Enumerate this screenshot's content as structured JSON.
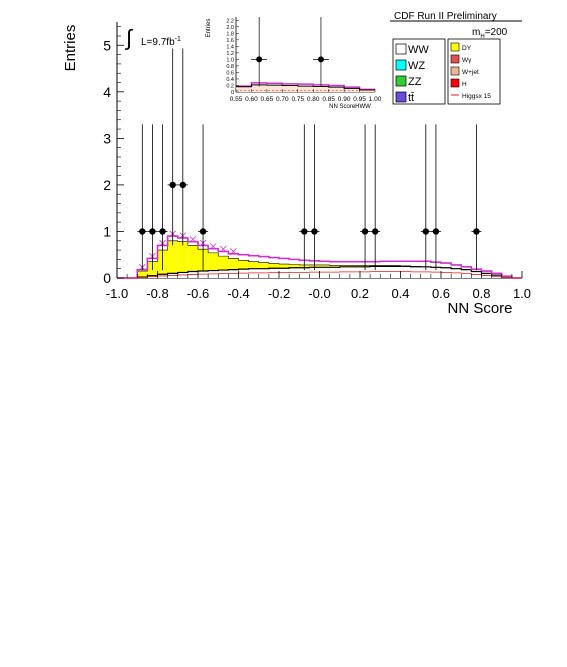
{
  "header": {
    "experiment": "CDF Run II Preliminary",
    "mass_label": "m",
    "mass_sub": "H",
    "mass_value": "=200",
    "lumi_prefix": "L=9.7fb",
    "lumi_sup": "-1"
  },
  "colors": {
    "WW": "#ffffff",
    "WZ": "#00ffff",
    "ZZ": "#33cc33",
    "ttbar": "#6a4cd8",
    "DY": "#ffff00",
    "Wgamma": "#e05050",
    "Wjet": "#e8b890",
    "H": "#ff0000",
    "Higgs_line": "#e02020",
    "total": "#cc33cc",
    "data": "#000000"
  },
  "chart_data": [
    {
      "id": "main",
      "type": "histogram",
      "xlabel": "NN Score",
      "ylabel": "Entries",
      "xlim": [
        -1.0,
        1.0
      ],
      "ylim": [
        0,
        5.5
      ],
      "xticks": [
        "-1.0",
        "-0.8",
        "-0.6",
        "-0.4",
        "-0.2",
        "-0.0",
        "0.2",
        "0.4",
        "0.6",
        "0.8",
        "1.0"
      ],
      "yticks": [
        "0",
        "1",
        "2",
        "3",
        "4",
        "5"
      ],
      "bin_edges": [
        -1.0,
        -0.95,
        -0.9,
        -0.85,
        -0.8,
        -0.75,
        -0.7,
        -0.65,
        -0.6,
        -0.55,
        -0.5,
        -0.45,
        -0.4,
        -0.35,
        -0.3,
        -0.25,
        -0.2,
        -0.15,
        -0.1,
        -0.05,
        0.0,
        0.05,
        0.1,
        0.15,
        0.2,
        0.25,
        0.3,
        0.35,
        0.4,
        0.45,
        0.5,
        0.55,
        0.6,
        0.65,
        0.7,
        0.75,
        0.8,
        0.85,
        0.9,
        0.95,
        1.0
      ],
      "ww_baseline": [
        0,
        0,
        0.02,
        0.05,
        0.08,
        0.1,
        0.12,
        0.14,
        0.15,
        0.16,
        0.17,
        0.18,
        0.19,
        0.2,
        0.2,
        0.21,
        0.21,
        0.22,
        0.22,
        0.23,
        0.23,
        0.23,
        0.24,
        0.24,
        0.24,
        0.25,
        0.25,
        0.25,
        0.25,
        0.24,
        0.24,
        0.23,
        0.22,
        0.2,
        0.18,
        0.14,
        0.1,
        0.06,
        0.02,
        0
      ],
      "dy_top": [
        0,
        0,
        0.15,
        0.35,
        0.6,
        0.8,
        0.78,
        0.7,
        0.62,
        0.54,
        0.47,
        0.42,
        0.38,
        0.35,
        0.33,
        0.31,
        0.3,
        0.29,
        0.28,
        0.28,
        0.28,
        0.27,
        0.27,
        0.27,
        0.27,
        0.27,
        0.27,
        0.27,
        0.26,
        0.25,
        0.24,
        0.23,
        0.22,
        0.2,
        0.18,
        0.14,
        0.1,
        0.06,
        0.02,
        0
      ],
      "total_top": [
        0,
        0,
        0.18,
        0.42,
        0.7,
        0.9,
        0.86,
        0.78,
        0.7,
        0.63,
        0.57,
        0.52,
        0.5,
        0.48,
        0.46,
        0.44,
        0.42,
        0.4,
        0.38,
        0.37,
        0.36,
        0.35,
        0.35,
        0.35,
        0.35,
        0.35,
        0.36,
        0.36,
        0.36,
        0.36,
        0.36,
        0.34,
        0.32,
        0.28,
        0.24,
        0.19,
        0.15,
        0.1,
        0.04,
        0
      ],
      "data_points": [
        {
          "x": -0.875,
          "y": 1
        },
        {
          "x": -0.825,
          "y": 1
        },
        {
          "x": -0.775,
          "y": 1
        },
        {
          "x": -0.725,
          "y": 2
        },
        {
          "x": -0.675,
          "y": 2
        },
        {
          "x": -0.575,
          "y": 1
        },
        {
          "x": -0.075,
          "y": 1
        },
        {
          "x": -0.025,
          "y": 1
        },
        {
          "x": 0.225,
          "y": 1
        },
        {
          "x": 0.275,
          "y": 1
        },
        {
          "x": 0.525,
          "y": 1
        },
        {
          "x": 0.575,
          "y": 1
        },
        {
          "x": 0.775,
          "y": 1
        }
      ]
    },
    {
      "id": "inset",
      "type": "histogram",
      "xlabel": "NN ScoreHWW",
      "ylabel": "Entries",
      "xlim": [
        0.55,
        1.0
      ],
      "ylim": [
        0,
        2.3
      ],
      "xticks": [
        "0.55",
        "0.60",
        "0.65",
        "0.70",
        "0.75",
        "0.80",
        "0.85",
        "0.90",
        "0.95",
        "1.00"
      ],
      "yticks": [
        "0",
        "0.2",
        "0.4",
        "0.6",
        "0.8",
        "1.0",
        "1.2",
        "1.4",
        "1.6",
        "1.8",
        "2.0",
        "2.2"
      ],
      "bin_edges": [
        0.55,
        0.6,
        0.65,
        0.7,
        0.75,
        0.8,
        0.85,
        0.9,
        0.95,
        1.0
      ],
      "total_top": [
        0.18,
        0.28,
        0.27,
        0.25,
        0.24,
        0.22,
        0.2,
        0.15,
        0.08
      ],
      "ww_top": [
        0.16,
        0.22,
        0.21,
        0.2,
        0.18,
        0.17,
        0.15,
        0.11,
        0.06
      ],
      "data_points": [
        {
          "x": 0.625,
          "y": 1
        },
        {
          "x": 0.825,
          "y": 1
        }
      ]
    }
  ],
  "legend": {
    "left": [
      {
        "key": "WW",
        "label": "WW"
      },
      {
        "key": "WZ",
        "label": "WZ"
      },
      {
        "key": "ZZ",
        "label": "ZZ"
      },
      {
        "key": "ttbar",
        "label": "tt̄"
      }
    ],
    "right": [
      {
        "key": "DY",
        "label": "DY"
      },
      {
        "key": "Wgamma",
        "label": "Wγ"
      },
      {
        "key": "Wjet",
        "label": "W+jet"
      },
      {
        "key": "H",
        "label": "H"
      },
      {
        "key": "Higgs_line",
        "label": "Higgsx 15",
        "style": "line"
      }
    ]
  }
}
